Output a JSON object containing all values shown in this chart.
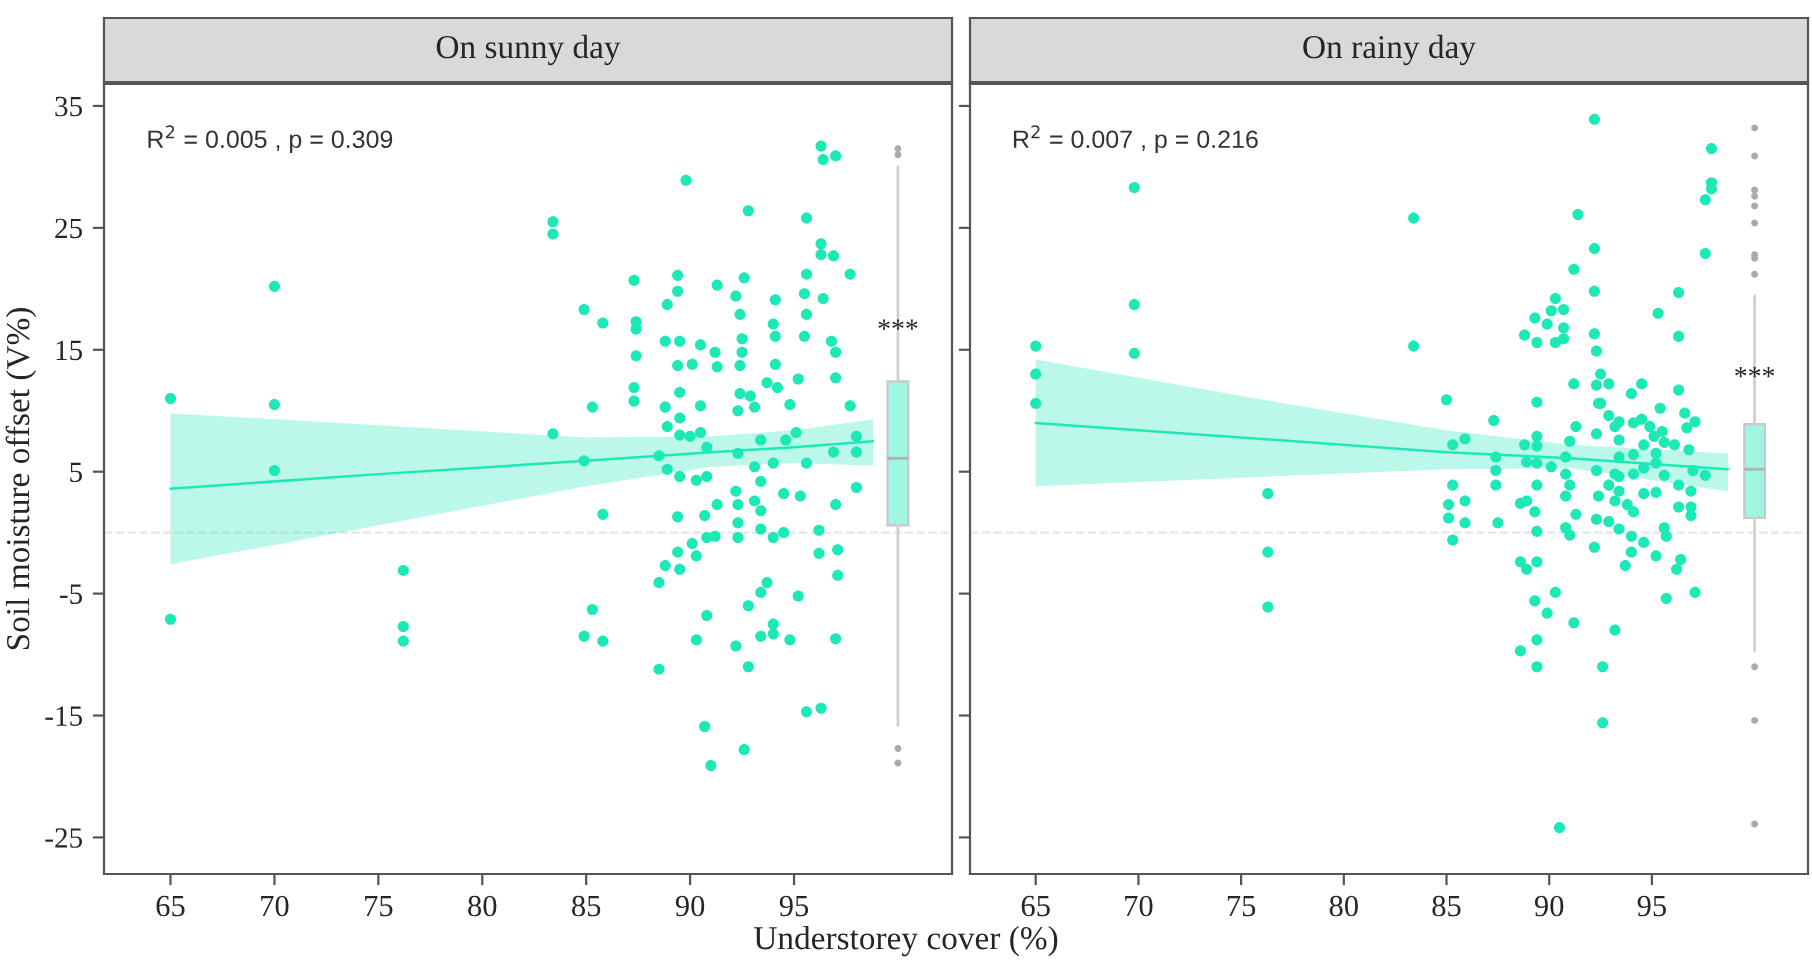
{
  "chart_data": [
    {
      "type": "scatter",
      "title": "On sunny day",
      "ylabel": "Soil moisture offset (V%)",
      "xlabel": "Understorey cover (%)",
      "xlim": [
        61.8,
        102.6
      ],
      "ylim": [
        -28,
        36.8
      ],
      "xticks": [
        65,
        70,
        75,
        80,
        85,
        90,
        95
      ],
      "yticks": [
        35,
        25,
        15,
        5,
        -5,
        -15,
        -25
      ],
      "grid": false,
      "legend": false,
      "annotations": [
        "R$^{2}$ = 0.005 , p = 0.309",
        {
          "text": "***",
          "x": 100,
          "y": 15.5
        }
      ],
      "ref_lines": [
        {
          "axis": "y",
          "value": 0,
          "color": "#e6e6e6",
          "line_style": "dashed"
        }
      ],
      "series": [
        {
          "marker": "circle",
          "color": "#1de9b6",
          "x": [
            65,
            65,
            70,
            70,
            70,
            76.2,
            76.2,
            76.2,
            83.4,
            83.4,
            83.4,
            84.9,
            84.9,
            84.9,
            85.3,
            85.3,
            85.8,
            85.8,
            85.8,
            87.3,
            87.4,
            87.4,
            87.4,
            87.3,
            87.3,
            88.5,
            88.5,
            88.5,
            88.8,
            88.9,
            88.8,
            88.9,
            88.9,
            88.8,
            89.4,
            89.4,
            89.5,
            89.4,
            89.5,
            89.5,
            89.5,
            89.5,
            89.4,
            89.4,
            89.5,
            89.8,
            90.1,
            90.0,
            90.3,
            90.1,
            90.3,
            90.3,
            90.5,
            90.5,
            90.5,
            90.8,
            90.8,
            90.7,
            90.8,
            90.8,
            90.7,
            91.0,
            91.2,
            91.3,
            91.3,
            91.3,
            91.2,
            92.2,
            92.4,
            92.5,
            92.5,
            92.4,
            92.4,
            92.3,
            92.3,
            92.2,
            92.3,
            92.3,
            92.3,
            92.2,
            92.6,
            92.8,
            92.6,
            92.9,
            92.8,
            92.8,
            93.1,
            93.1,
            93.1,
            93.4,
            93.4,
            93.4,
            93.4,
            93.4,
            93.4,
            93.7,
            93.7,
            94.0,
            94.1,
            94.1,
            94.1,
            94.2,
            94.0,
            94.0,
            94.0,
            94.0,
            94.6,
            94.5,
            94.5,
            94.8,
            94.8,
            95.2,
            95.1,
            95.3,
            95.2,
            95.5,
            95.6,
            95.6,
            95.5,
            95.6,
            95.6,
            95.6,
            96.2,
            96.2,
            96.3,
            96.3,
            96.4,
            96.3,
            96.3,
            96.4,
            97.0,
            96.9,
            96.8,
            97.0,
            97.0,
            96.9,
            97.0,
            97.1,
            97.1,
            97.0,
            97.7,
            97.7,
            98.0,
            98.0,
            98.0
          ],
          "values": [
            11.0,
            -7.1,
            20.2,
            10.5,
            5.1,
            -3.1,
            -7.7,
            -8.9,
            25.5,
            24.5,
            8.1,
            18.3,
            5.9,
            -8.5,
            10.3,
            -6.3,
            17.2,
            1.5,
            -8.9,
            20.7,
            17.3,
            16.7,
            14.5,
            11.9,
            10.8,
            6.3,
            -4.1,
            -11.2,
            15.7,
            18.7,
            10.3,
            8.7,
            5.2,
            -2.7,
            21.1,
            19.8,
            15.7,
            13.7,
            11.5,
            9.4,
            8.0,
            4.6,
            1.3,
            -1.6,
            -3.0,
            28.9,
            13.8,
            7.9,
            4.3,
            -0.9,
            -1.9,
            -8.8,
            15.4,
            10.4,
            8.2,
            7.0,
            4.6,
            1.4,
            -0.4,
            -6.8,
            -15.9,
            -19.1,
            14.8,
            13.6,
            20.3,
            2.3,
            -0.3,
            19.4,
            17.9,
            15.9,
            14.8,
            13.7,
            11.4,
            10.0,
            6.5,
            3.4,
            2.3,
            0.8,
            -0.4,
            -9.3,
            20.9,
            26.4,
            -17.8,
            11.2,
            -6.0,
            -11.0,
            10.3,
            5.4,
            2.6,
            7.6,
            4.2,
            1.8,
            0.3,
            -4.9,
            -8.5,
            12.3,
            -4.1,
            17.1,
            19.1,
            16.1,
            13.8,
            11.9,
            5.7,
            -0.4,
            -7.5,
            -8.3,
            7.6,
            3.2,
            0.0,
            -8.8,
            10.5,
            12.6,
            8.2,
            3.0,
            -5.2,
            19.6,
            25.8,
            21.2,
            16.1,
            17.9,
            5.7,
            -14.7,
            0.2,
            -1.7,
            23.7,
            22.8,
            19.2,
            -14.4,
            31.7,
            30.6,
            30.9,
            22.7,
            15.7,
            14.8,
            12.7,
            6.6,
            2.3,
            -1.4,
            -3.5,
            -8.7,
            21.2,
            10.4,
            7.9,
            6.6,
            3.7
          ]
        },
        {
          "type": "line",
          "color": "#1de9b6",
          "x": [
            65,
            75,
            85,
            91,
            95,
            98.8
          ],
          "values": [
            3.6,
            4.8,
            5.9,
            6.6,
            7.0,
            7.5
          ],
          "lower": [
            -2.6,
            0.6,
            3.8,
            5.4,
            5.7,
            5.5
          ],
          "upper": [
            9.8,
            8.8,
            7.8,
            7.9,
            8.4,
            9.3
          ]
        },
        {
          "type": "box",
          "color": "#9ff7e2",
          "x": [
            100
          ],
          "boxes": [
            {
              "low": -15.8,
              "q1": 0.6,
              "median": 6.1,
              "q3": 12.4,
              "high": 30.0,
              "outliers": [
                31.5,
                31.0,
                -17.7,
                -18.9
              ]
            }
          ]
        }
      ]
    },
    {
      "type": "scatter",
      "title": "On rainy day",
      "xlim": [
        61.8,
        102.6
      ],
      "ylim": [
        -28,
        36.8
      ],
      "xticks": [
        65,
        70,
        75,
        80,
        85,
        90,
        95
      ],
      "yticks": [
        35,
        25,
        15,
        5,
        -5,
        -15,
        -25
      ],
      "tick_labels": "x",
      "grid": false,
      "legend": false,
      "annotations": [
        "R$^{2}$ = 0.007 , p = 0.216",
        {
          "text": "***",
          "x": 100,
          "y": 11.6
        }
      ],
      "ref_lines": [
        {
          "axis": "y",
          "value": 0,
          "color": "#e6e6e6",
          "line_style": "dashed"
        }
      ],
      "series": [
        {
          "marker": "circle",
          "color": "#1de9b6",
          "x": [
            65,
            65,
            65,
            69.8,
            69.8,
            69.8,
            76.3,
            76.3,
            76.3,
            83.4,
            83.4,
            85.0,
            85.1,
            85.1,
            85.3,
            85.3,
            85.3,
            85.9,
            85.9,
            85.9,
            87.3,
            87.4,
            87.4,
            87.4,
            87.5,
            88.6,
            88.6,
            88.6,
            88.8,
            88.8,
            88.9,
            88.9,
            88.9,
            89.3,
            89.4,
            89.4,
            89.4,
            89.4,
            89.4,
            89.4,
            89.3,
            89.4,
            89.4,
            89.3,
            89.4,
            89.4,
            89.9,
            89.9,
            90.1,
            90.1,
            90.3,
            90.3,
            90.3,
            90.7,
            90.7,
            90.7,
            90.8,
            90.8,
            90.8,
            90.8,
            91.0,
            91.0,
            91.0,
            91.2,
            91.2,
            91.2,
            91.3,
            91.3,
            91.4,
            90.5,
            92.2,
            92.2,
            92.2,
            92.2,
            92.3,
            92.3,
            92.4,
            92.3,
            92.3,
            92.4,
            92.3,
            92.2,
            92.5,
            92.5,
            92.6,
            92.6,
            92.9,
            92.9,
            92.9,
            92.9,
            93.2,
            93.2,
            93.2,
            93.2,
            93.4,
            93.4,
            93.4,
            93.4,
            93.4,
            93.4,
            93.7,
            93.8,
            94.0,
            94.1,
            94.1,
            94.1,
            94.1,
            94.0,
            94.0,
            94.5,
            94.5,
            94.6,
            94.6,
            94.6,
            94.6,
            94.9,
            95.1,
            95.2,
            95.2,
            95.2,
            95.2,
            95.3,
            95.4,
            95.5,
            95.6,
            95.6,
            95.6,
            95.7,
            95.7,
            96.1,
            96.2,
            96.3,
            96.3,
            96.3,
            96.3,
            96.3,
            96.4,
            96.6,
            96.7,
            96.8,
            96.9,
            96.9,
            96.9,
            97.0,
            97.1,
            97.1,
            97.6,
            97.6,
            97.6,
            97.9,
            97.9,
            97.9
          ],
          "values": [
            15.3,
            13.0,
            10.6,
            28.3,
            18.7,
            14.7,
            3.2,
            -1.6,
            -6.1,
            25.8,
            15.3,
            10.9,
            2.3,
            1.2,
            7.2,
            -0.6,
            3.9,
            7.7,
            2.6,
            0.8,
            9.2,
            6.2,
            5.1,
            3.9,
            0.8,
            2.4,
            -2.4,
            -9.7,
            16.2,
            7.2,
            5.8,
            2.6,
            -3.0,
            17.6,
            15.6,
            10.7,
            7.9,
            7.1,
            5.7,
            3.9,
            1.7,
            0.1,
            -2.4,
            -5.6,
            -8.8,
            -11.0,
            17.1,
            -6.6,
            18.2,
            5.4,
            19.2,
            15.6,
            -4.9,
            18.3,
            16.8,
            15.9,
            6.2,
            4.8,
            3.0,
            0.4,
            7.5,
            3.9,
            -0.2,
            21.6,
            12.2,
            -7.4,
            8.7,
            1.5,
            26.1,
            -24.2,
            33.9,
            16.3,
            23.3,
            19.8,
            14.9,
            12.1,
            10.6,
            8.1,
            5.1,
            3.0,
            1.1,
            -1.2,
            13.0,
            10.6,
            -11.0,
            -15.6,
            12.2,
            9.6,
            3.9,
            0.9,
            8.7,
            4.8,
            2.6,
            -8.0,
            9.1,
            7.6,
            6.2,
            4.6,
            3.4,
            0.3,
            -2.7,
            2.3,
            11.4,
            9.0,
            6.4,
            4.8,
            1.7,
            -0.3,
            -1.6,
            12.2,
            9.3,
            7.2,
            5.3,
            3.2,
            -0.8,
            8.7,
            7.9,
            6.5,
            5.7,
            3.3,
            -1.9,
            18.0,
            10.2,
            8.3,
            7.4,
            4.7,
            0.4,
            -0.3,
            -5.4,
            7.2,
            -3.0,
            19.7,
            16.1,
            11.7,
            3.9,
            2.1,
            -2.2,
            9.8,
            8.6,
            6.8,
            3.4,
            2.1,
            1.4,
            5.1,
            9.1,
            -4.9,
            4.7,
            22.9,
            27.3,
            28.7,
            28.2,
            31.5
          ]
        },
        {
          "type": "line",
          "color": "#1de9b6",
          "x": [
            65,
            75,
            85,
            91,
            98.7
          ],
          "values": [
            9.0,
            7.8,
            6.6,
            6.1,
            5.2
          ],
          "lower": [
            3.8,
            4.5,
            5.2,
            5.3,
            3.4
          ],
          "upper": [
            14.2,
            11.2,
            8.4,
            7.2,
            6.5
          ]
        },
        {
          "type": "box",
          "color": "#9ff7e2",
          "x": [
            100
          ],
          "boxes": [
            {
              "low": -9.7,
              "q1": 1.2,
              "median": 5.2,
              "q3": 8.9,
              "high": 19.4,
              "outliers": [
                33.2,
                30.9,
                28.1,
                27.6,
                26.8,
                25.4,
                22.8,
                22.5,
                21.2,
                -11.0,
                -15.4,
                -23.9
              ]
            }
          ]
        }
      ]
    }
  ]
}
